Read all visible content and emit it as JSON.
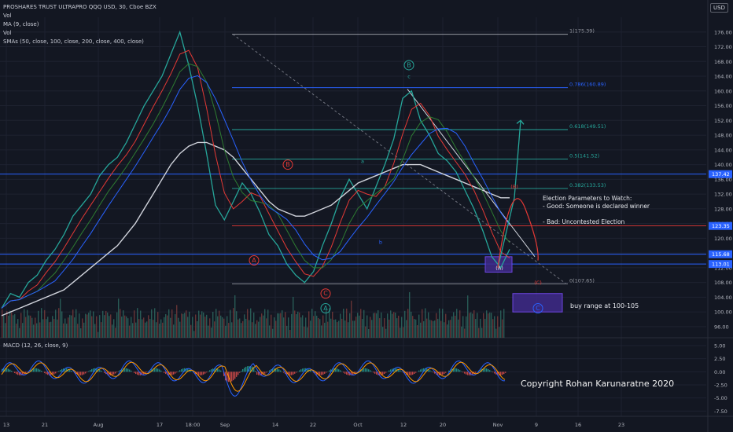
{
  "header": {
    "title": "PROSHARES TRUST ULTRAPRO QQQ USD, 30, Cboe BZX",
    "indicators": [
      "Vol",
      "MA (9, close)",
      "Vol",
      "SMAs (50, close, 100, close, 200, close, 400, close)"
    ],
    "currency_badge": "USD",
    "macd_label": "MACD (12, 26, close, 9)"
  },
  "notes": {
    "title": "Election Parameters to Watch:",
    "good": "- Good: Someone is declared winner",
    "bad": "- Bad: Uncontested Election",
    "buy_range": "buy range at 100-105",
    "copyright": "Copyright Rohan Karunaratne 2020"
  },
  "chart_data": {
    "type": "line",
    "title": "PROSHARES TRUST ULTRAPRO QQQ USD, 30, Cboe BZX",
    "price_axis": {
      "ylim": [
        93,
        180
      ],
      "ticks": [
        96.0,
        100.0,
        104.0,
        108.0,
        112.0,
        116.0,
        120.0,
        124.0,
        128.0,
        132.0,
        136.0,
        140.0,
        144.0,
        148.0,
        152.0,
        156.0,
        160.0,
        164.0,
        168.0,
        172.0,
        176.0
      ]
    },
    "macd_axis": {
      "ylim": [
        -8.5,
        6.5
      ],
      "ticks": [
        5.0,
        2.5,
        0.0,
        -2.5,
        -5.0,
        -7.5
      ]
    },
    "x_labels": [
      "13",
      "21",
      "Aug",
      "17",
      "18:00",
      "Sep",
      "14",
      "22",
      "Oct",
      "12",
      "20",
      "Nov",
      "9",
      "16",
      "23"
    ],
    "grid": true,
    "price_badges": [
      {
        "value": "137.42",
        "color": "#2962ff"
      },
      {
        "value": "123.35",
        "color": "#2962ff"
      },
      {
        "value": "115.68",
        "color": "#2962ff"
      },
      {
        "value": "113.01",
        "color": "#2962ff"
      }
    ],
    "horizontal_levels": [
      115.68,
      113.01,
      137.42
    ],
    "fibonacci": [
      {
        "label": "1(175.39)",
        "value": 175.39
      },
      {
        "label": "0.786(160.89)",
        "value": 160.89
      },
      {
        "label": "0.618(149.51)",
        "value": 149.51
      },
      {
        "label": "0.5(141.52)",
        "value": 141.52
      },
      {
        "label": "0.382(133.53)",
        "value": 133.53
      },
      {
        "label": "0(107.65)",
        "value": 107.65
      }
    ],
    "wave_labels": [
      {
        "text": "B",
        "kind": "circle",
        "color": "#26a69a",
        "x": "Oct",
        "y": 167
      },
      {
        "text": "c",
        "kind": "text",
        "color": "#26a69a",
        "x": "Oct",
        "y": 164
      },
      {
        "text": "B",
        "kind": "circle",
        "color": "#e53935",
        "x": "Sep",
        "y": 140
      },
      {
        "text": "a",
        "kind": "text",
        "color": "#26a69a",
        "x": "Oct",
        "y": 141
      },
      {
        "text": "b",
        "kind": "text",
        "color": "#2962ff",
        "x": "Oct",
        "y": 119
      },
      {
        "text": "A",
        "kind": "circle",
        "color": "#e53935",
        "x": "Sep",
        "y": 114
      },
      {
        "text": "C",
        "kind": "circle",
        "color": "#e53935",
        "x": "22",
        "y": 105
      },
      {
        "text": "A",
        "kind": "circle",
        "color": "#26a69a",
        "x": "22",
        "y": 101
      },
      {
        "text": "(A)",
        "kind": "text",
        "color": "#e0e0e0",
        "x": "Nov",
        "y": 112
      },
      {
        "text": "(B)",
        "kind": "text",
        "color": "#e53935",
        "x": "Nov",
        "y": 134
      },
      {
        "text": "(C)",
        "kind": "text",
        "color": "#e53935",
        "x": "Nov",
        "y": 108
      },
      {
        "text": "C",
        "kind": "circle",
        "color": "#2962ff",
        "x": "Nov",
        "y": 101
      }
    ],
    "series": [
      {
        "name": "Price",
        "color": "#26a69a",
        "values": [
          101,
          105,
          104,
          108,
          110,
          114,
          117,
          121,
          126,
          129,
          132,
          137,
          140,
          142,
          146,
          151,
          156,
          160,
          164,
          170,
          176,
          167,
          156,
          143,
          129,
          125,
          130,
          135,
          132,
          127,
          121,
          118,
          113,
          110,
          108,
          111,
          118,
          124,
          131,
          136,
          132,
          128,
          134,
          140,
          147,
          158,
          160,
          152,
          148,
          143,
          141,
          138,
          133,
          128,
          122,
          115,
          112,
          117
        ]
      },
      {
        "name": "SMA 200",
        "color": "#d1d4dc",
        "values": [
          99,
          100,
          101,
          102,
          103,
          104,
          105,
          106,
          108,
          110,
          112,
          114,
          116,
          118,
          121,
          124,
          128,
          132,
          136,
          140,
          143,
          145,
          146,
          146,
          145,
          144,
          142,
          139,
          136,
          133,
          130,
          128,
          127,
          126,
          126,
          127,
          128,
          129,
          131,
          133,
          135,
          136,
          137,
          138,
          139,
          140,
          140,
          140,
          139,
          138,
          137,
          136,
          135,
          134,
          133,
          132,
          131,
          131
        ]
      }
    ],
    "forecast_paths": [
      {
        "name": "bullish",
        "color": "#26a69a",
        "values": [
          [
            114,
            112
          ],
          [
            122,
            131
          ],
          [
            152,
            152
          ]
        ]
      },
      {
        "name": "bearish",
        "color": "#e53935",
        "values": [
          [
            114,
            112
          ],
          [
            122,
            131
          ],
          [
            128,
            112
          ]
        ]
      }
    ],
    "buy_box": {
      "from": 100,
      "to": 105,
      "color": "#3f2a8a"
    }
  }
}
